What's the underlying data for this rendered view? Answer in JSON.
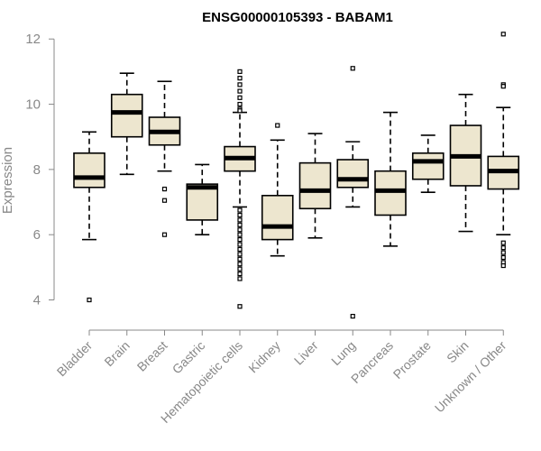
{
  "chart_data": {
    "type": "boxplot",
    "title": "ENSG00000105393 - BABAM1",
    "ylabel": "Expression",
    "xlabel": "",
    "ylim": [
      3.35,
      12.2
    ],
    "yticks": [
      4,
      6,
      8,
      10,
      12
    ],
    "box_fill": "#ede6cf",
    "box_stroke": "#000000",
    "axis_color": "#888888",
    "categories": [
      "Bladder",
      "Brain",
      "Breast",
      "Gastric",
      "Hematopoietic cells",
      "Kidney",
      "Liver",
      "Lung",
      "Pancreas",
      "Prostate",
      "Skin",
      "Unknown / Other"
    ],
    "series": [
      {
        "q1": 7.45,
        "median": 7.75,
        "q3": 8.5,
        "whisker_low": 5.85,
        "whisker_high": 9.15,
        "outliers": [
          4.0
        ]
      },
      {
        "q1": 9.0,
        "median": 9.75,
        "q3": 10.3,
        "whisker_low": 7.85,
        "whisker_high": 10.95,
        "outliers": []
      },
      {
        "q1": 8.75,
        "median": 9.15,
        "q3": 9.6,
        "whisker_low": 7.95,
        "whisker_high": 10.7,
        "outliers": [
          7.4,
          7.05,
          6.0
        ]
      },
      {
        "q1": 6.45,
        "median": 7.45,
        "q3": 7.55,
        "whisker_low": 6.0,
        "whisker_high": 8.15,
        "outliers": []
      },
      {
        "q1": 7.95,
        "median": 8.35,
        "q3": 8.7,
        "whisker_low": 6.85,
        "whisker_high": 9.75,
        "outliers": [
          11.0,
          10.8,
          10.6,
          10.4,
          10.2,
          10.0,
          9.85,
          9.8,
          6.75,
          6.6,
          6.45,
          6.3,
          6.15,
          6.0,
          5.85,
          5.7,
          5.55,
          5.4,
          5.25,
          5.1,
          4.95,
          4.8,
          4.65,
          3.8
        ]
      },
      {
        "q1": 5.85,
        "median": 6.25,
        "q3": 7.2,
        "whisker_low": 5.35,
        "whisker_high": 8.9,
        "outliers": [
          9.35
        ]
      },
      {
        "q1": 6.8,
        "median": 7.35,
        "q3": 8.2,
        "whisker_low": 5.9,
        "whisker_high": 9.1,
        "outliers": []
      },
      {
        "q1": 7.45,
        "median": 7.7,
        "q3": 8.3,
        "whisker_low": 6.85,
        "whisker_high": 8.85,
        "outliers": [
          11.1,
          3.5
        ]
      },
      {
        "q1": 6.6,
        "median": 7.35,
        "q3": 7.95,
        "whisker_low": 5.65,
        "whisker_high": 9.75,
        "outliers": []
      },
      {
        "q1": 7.7,
        "median": 8.25,
        "q3": 8.5,
        "whisker_low": 7.3,
        "whisker_high": 9.05,
        "outliers": []
      },
      {
        "q1": 7.5,
        "median": 8.4,
        "q3": 9.35,
        "whisker_low": 6.1,
        "whisker_high": 10.3,
        "outliers": []
      },
      {
        "q1": 7.4,
        "median": 7.95,
        "q3": 8.4,
        "whisker_low": 6.0,
        "whisker_high": 9.9,
        "outliers": [
          12.15,
          10.6,
          10.55,
          5.75,
          5.6,
          5.45,
          5.3,
          5.15,
          5.05
        ]
      }
    ]
  }
}
